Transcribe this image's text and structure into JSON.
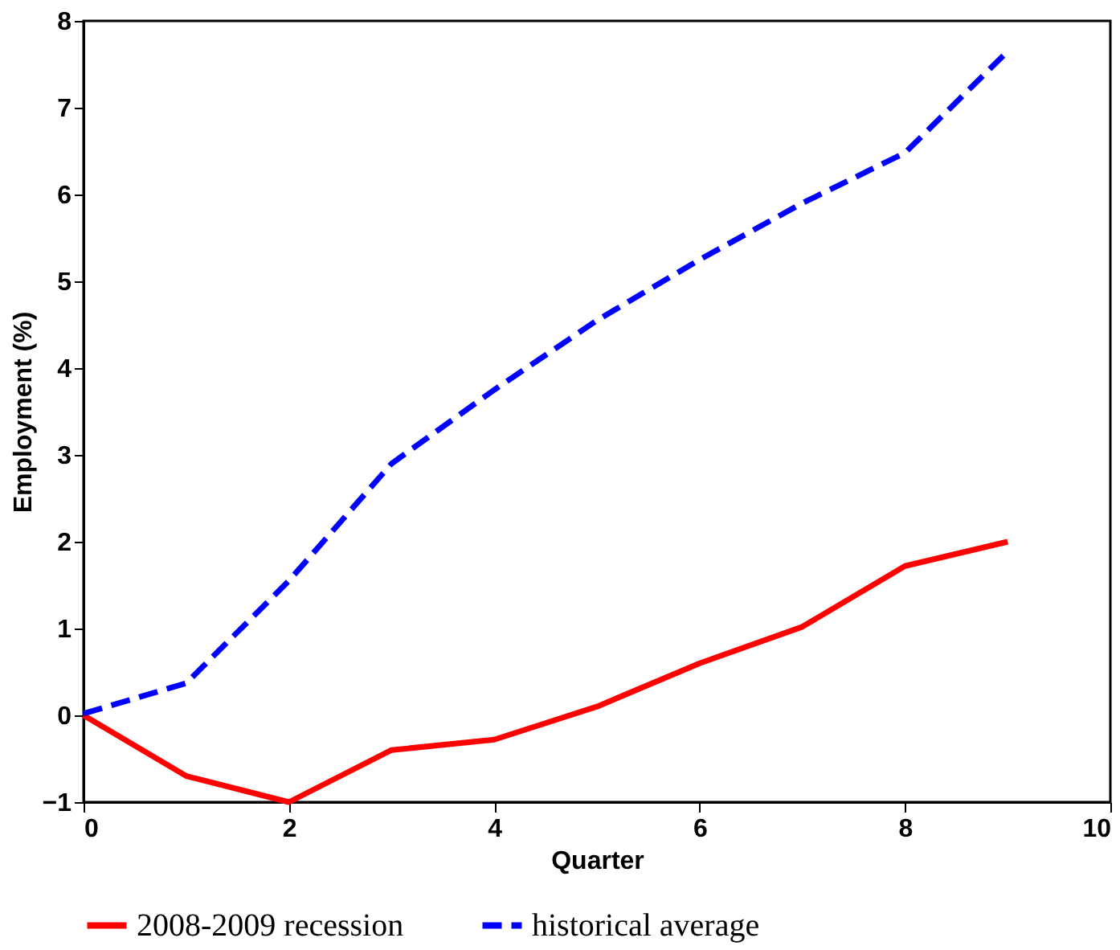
{
  "chart_data": {
    "type": "line",
    "xlabel": "Quarter",
    "ylabel": "Employment (%)",
    "x": [
      0,
      1,
      2,
      3,
      4,
      5,
      6,
      7,
      8,
      9
    ],
    "series": [
      {
        "name": "2008-2009 recession",
        "color": "#ff0000",
        "line_style": "solid",
        "values": [
          0,
          -0.7,
          -1.0,
          -0.4,
          -0.28,
          0.1,
          0.6,
          1.02,
          1.72,
          2.0
        ]
      },
      {
        "name": "historical average",
        "color": "#0000ff",
        "line_style": "dashed",
        "values": [
          0.02,
          0.37,
          1.55,
          2.9,
          3.75,
          4.55,
          5.25,
          5.9,
          6.48,
          7.65
        ]
      }
    ],
    "xlim": [
      0,
      10
    ],
    "xticks": [
      0,
      2,
      4,
      6,
      8,
      10
    ],
    "ylim": [
      -1,
      8
    ],
    "yticks": [
      -1,
      0,
      1,
      2,
      3,
      4,
      5,
      6,
      7,
      8
    ],
    "grid": false,
    "legend": "bottom",
    "marker": "none"
  }
}
